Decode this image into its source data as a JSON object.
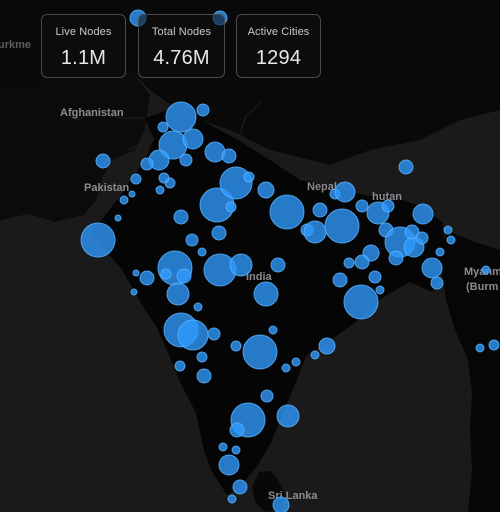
{
  "stats": [
    {
      "label": "Live Nodes",
      "value": "1.1M"
    },
    {
      "label": "Total Nodes",
      "value": "4.76M"
    },
    {
      "label": "Active Cities",
      "value": "1294"
    }
  ],
  "places": {
    "turkmenistan": "urkme",
    "afghanistan": "Afghanistan",
    "pakistan": "Pakistan",
    "nepal": "Nepal",
    "bhutan": "hutan",
    "india": "India",
    "myanmar_1": "Myanm",
    "myanmar_2": "(Burm",
    "sri_lanka": "Sri Lanka"
  },
  "colors": {
    "background": "#111112",
    "land": "#070707",
    "node_fill": "#2f9bff",
    "node_stroke": "#58b2ff",
    "card_border": "#4a4a4d"
  }
}
